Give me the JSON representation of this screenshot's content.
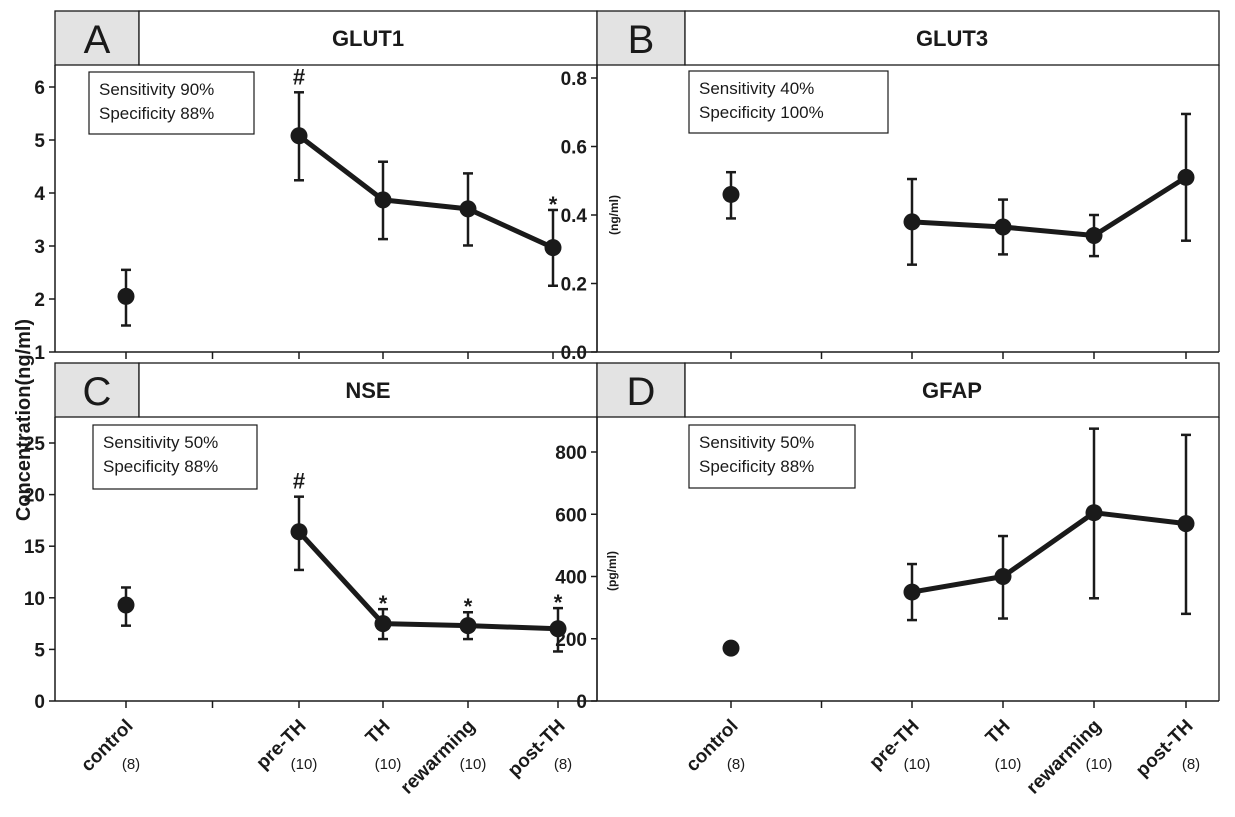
{
  "y_axis_shared_label": "Concentration(ng/ml)",
  "chart_data": [
    {
      "type": "line",
      "panel": "A",
      "title": "GLUT1",
      "ylabel": "",
      "ylim": [
        1,
        6
      ],
      "yticks": [
        "1",
        "2",
        "3",
        "4",
        "5",
        "6"
      ],
      "box_lines": [
        "Sensitivity 90%",
        "Specificity 88%"
      ],
      "categories": [
        "control",
        "pre-TH",
        "TH",
        "rewarming",
        "post-TH"
      ],
      "n_labels": [
        "(8)",
        "(10)",
        "(10)",
        "(10)",
        "(8)"
      ],
      "values": [
        2.05,
        5.08,
        3.87,
        3.7,
        2.97
      ],
      "err_low": [
        1.5,
        4.24,
        3.13,
        3.01,
        2.25
      ],
      "err_high": [
        2.55,
        5.9,
        4.59,
        4.37,
        3.68
      ],
      "annotations": [
        "",
        "#",
        "",
        "",
        "*"
      ]
    },
    {
      "type": "line",
      "panel": "B",
      "title": "GLUT3",
      "ylabel": "(ng/ml)",
      "ylim": [
        0,
        0.8
      ],
      "yticks": [
        "0.0",
        "0.2",
        "0.4",
        "0.6",
        "0.8"
      ],
      "box_lines": [
        "Sensitivity 40%",
        "Specificity 100%"
      ],
      "categories": [
        "control",
        "pre-TH",
        "TH",
        "rewarming",
        "post-TH"
      ],
      "n_labels": [
        "(8)",
        "(10)",
        "(10)",
        "(10)",
        "(8)"
      ],
      "values": [
        0.46,
        0.38,
        0.365,
        0.34,
        0.51
      ],
      "err_low": [
        0.39,
        0.255,
        0.285,
        0.28,
        0.325
      ],
      "err_high": [
        0.525,
        0.505,
        0.445,
        0.4,
        0.695
      ],
      "annotations": [
        "",
        "",
        "",
        "",
        ""
      ]
    },
    {
      "type": "line",
      "panel": "C",
      "title": "NSE",
      "ylabel": "",
      "ylim": [
        0,
        25
      ],
      "yticks": [
        "0",
        "5",
        "10",
        "15",
        "20",
        "25"
      ],
      "box_lines": [
        "Sensitivity 50%",
        "Specificity 88%"
      ],
      "categories": [
        "control",
        "pre-TH",
        "TH",
        "rewarming",
        "post-TH"
      ],
      "n_labels": [
        "(8)",
        "(10)",
        "(10)",
        "(10)",
        "(8)"
      ],
      "values": [
        9.3,
        16.4,
        7.5,
        7.3,
        7.0
      ],
      "err_low": [
        7.3,
        12.7,
        6.0,
        6.0,
        4.8
      ],
      "err_high": [
        11.0,
        19.8,
        8.9,
        8.6,
        9.0
      ],
      "annotations": [
        "",
        "#",
        "*",
        "*",
        "*"
      ]
    },
    {
      "type": "line",
      "panel": "D",
      "title": "GFAP",
      "ylabel": "(pg/ml)",
      "ylim": [
        0,
        800
      ],
      "ymax_plot": 880,
      "yticks": [
        "0",
        "200",
        "400",
        "600",
        "800"
      ],
      "box_lines": [
        "Sensitivity 50%",
        "Specificity 88%"
      ],
      "categories": [
        "control",
        "pre-TH",
        "TH",
        "rewarming",
        "post-TH"
      ],
      "n_labels": [
        "(8)",
        "(10)",
        "(10)",
        "(10)",
        "(8)"
      ],
      "values": [
        170,
        350,
        400,
        605,
        570
      ],
      "err_low": [
        170,
        260,
        265,
        330,
        280
      ],
      "err_high": [
        170,
        440,
        530,
        875,
        855
      ],
      "annotations": [
        "",
        "",
        "",
        "",
        ""
      ]
    }
  ]
}
